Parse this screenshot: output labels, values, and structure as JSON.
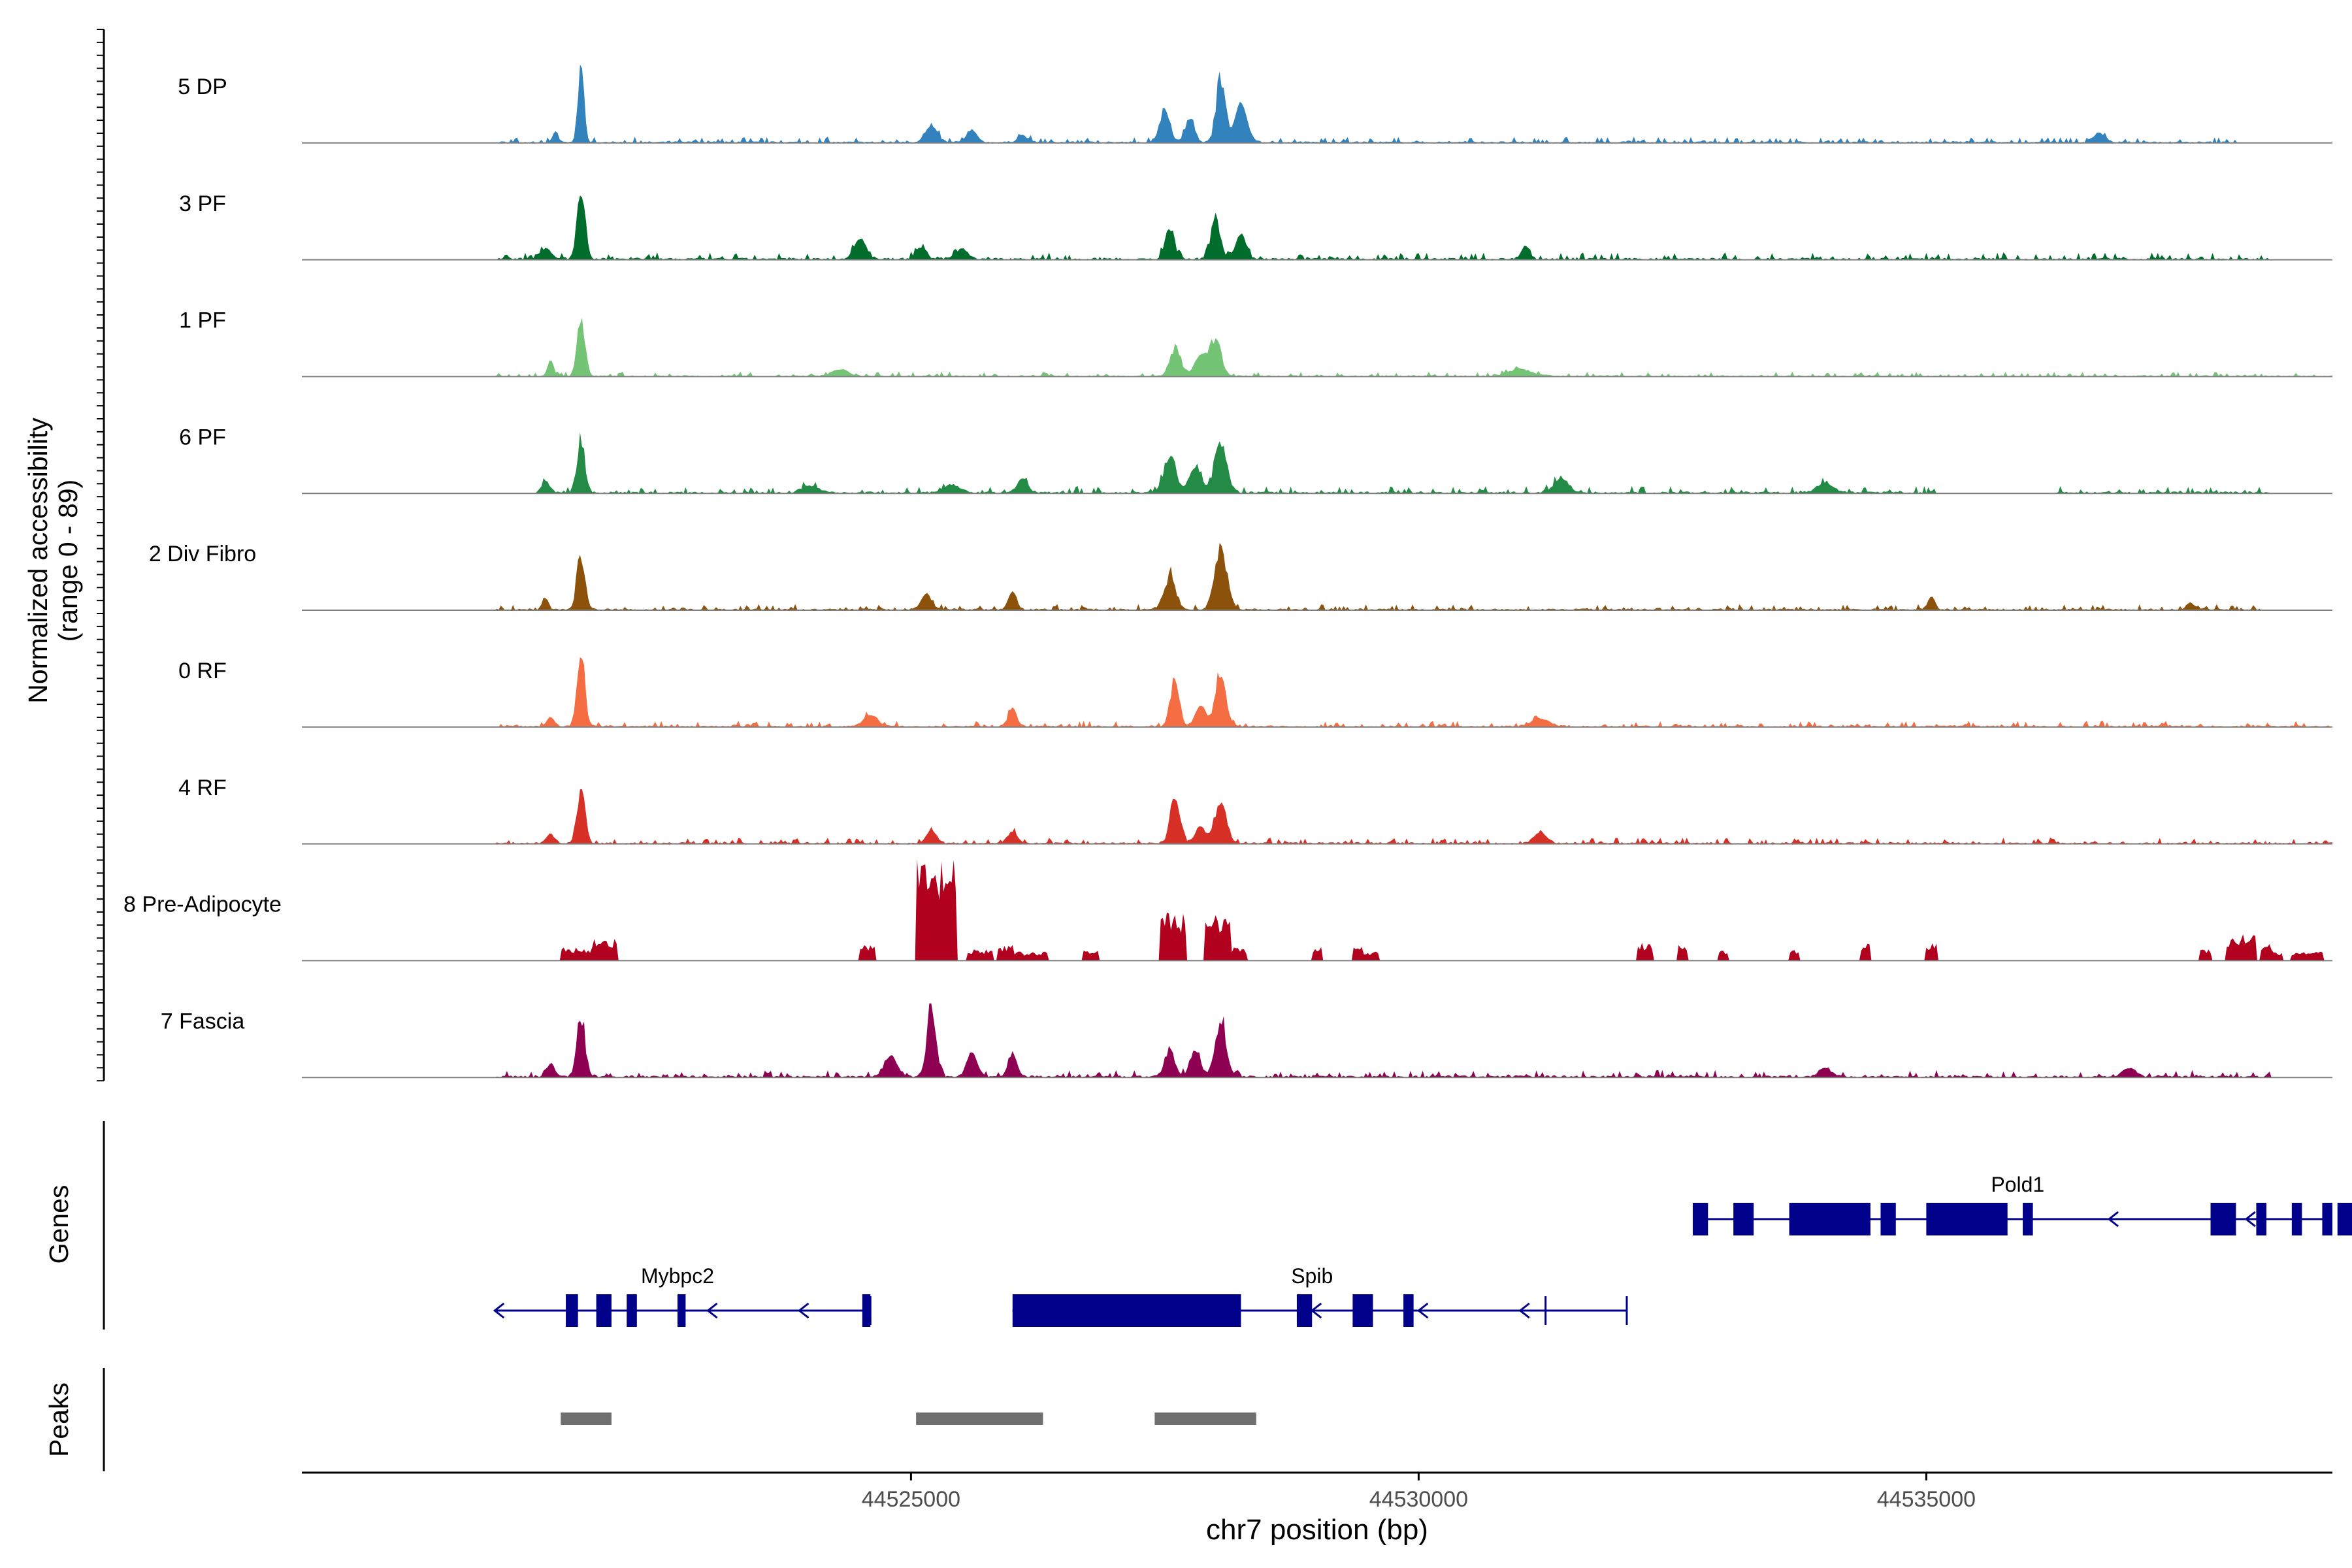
{
  "chart_data": {
    "type": "area",
    "title": "",
    "xlabel": "chr7 position (bp)",
    "ylabel": "Normalized accessibility",
    "ylabel_range": "(range 0 - 89)",
    "xlim": [
      44519000,
      44539000
    ],
    "ylim": [
      0,
      89
    ],
    "x_ticks": [
      44525000,
      44530000,
      44535000
    ],
    "x_tick_labels": [
      "44525000",
      "44530000",
      "44535000"
    ],
    "tracks_x_extent": [
      44520000,
      44539000
    ],
    "colors": {
      "axis": "#000000",
      "baseline": "#7f7f7f",
      "gene": "#00008b",
      "peak": "#6f6f6f",
      "label": "#000000",
      "tick_label": "#4d4d4d"
    },
    "series": [
      {
        "name": "5 DP",
        "color": "#3182bd",
        "peaks": [
          [
            44521750,
            70,
            30,
            1
          ],
          [
            44521500,
            10,
            25,
            0
          ],
          [
            44525200,
            14,
            60,
            0
          ],
          [
            44525600,
            10,
            50,
            0
          ],
          [
            44526100,
            6,
            50,
            0
          ],
          [
            44527500,
            32,
            50,
            1
          ],
          [
            44527750,
            22,
            45,
            1
          ],
          [
            44528050,
            60,
            45,
            1
          ],
          [
            44528250,
            35,
            60,
            0
          ],
          [
            44536700,
            8,
            60,
            0
          ]
        ],
        "noise": 2.5,
        "gaps": [
          [
            44519000,
            44520900
          ],
          [
            44538100,
            44539000
          ]
        ]
      },
      {
        "name": "3 PF",
        "color": "#006d2c",
        "peaks": [
          [
            44521750,
            58,
            40,
            1
          ],
          [
            44521400,
            9,
            60,
            0
          ],
          [
            44524500,
            18,
            60,
            0
          ],
          [
            44525100,
            10,
            50,
            0
          ],
          [
            44525500,
            9,
            60,
            0
          ],
          [
            44527550,
            30,
            45,
            1
          ],
          [
            44528000,
            35,
            50,
            1
          ],
          [
            44528250,
            22,
            50,
            0
          ],
          [
            44531050,
            12,
            40,
            0
          ]
        ],
        "noise": 3,
        "gaps": [
          [
            44519000,
            44520900
          ],
          [
            44533200,
            44533300
          ],
          [
            44538400,
            44539000
          ]
        ]
      },
      {
        "name": "1 PF",
        "color": "#74c476",
        "peaks": [
          [
            44521750,
            50,
            40,
            1
          ],
          [
            44521450,
            14,
            30,
            0
          ],
          [
            44524300,
            6,
            80,
            0
          ],
          [
            44527600,
            26,
            50,
            1
          ],
          [
            44528000,
            36,
            55,
            1
          ],
          [
            44527850,
            18,
            60,
            0
          ],
          [
            44531000,
            6,
            120,
            0
          ]
        ],
        "noise": 2,
        "gaps": [
          [
            44519000,
            44520900
          ]
        ]
      },
      {
        "name": "6 PF",
        "color": "#238b45",
        "peaks": [
          [
            44521750,
            45,
            40,
            1
          ],
          [
            44521400,
            10,
            40,
            0
          ],
          [
            44524000,
            6,
            80,
            0
          ],
          [
            44525400,
            7,
            80,
            0
          ],
          [
            44526100,
            13,
            50,
            0
          ],
          [
            44527550,
            30,
            60,
            1
          ],
          [
            44528050,
            48,
            60,
            1
          ],
          [
            44527800,
            22,
            60,
            0
          ],
          [
            44531400,
            12,
            70,
            0
          ],
          [
            44534000,
            8,
            80,
            0
          ]
        ],
        "noise": 3,
        "gaps": [
          [
            44519000,
            44521300
          ],
          [
            44535100,
            44536200
          ],
          [
            44538400,
            44539000
          ]
        ]
      },
      {
        "name": "2 Div Fibro",
        "color": "#8c510a",
        "peaks": [
          [
            44521750,
            52,
            40,
            1
          ],
          [
            44521400,
            10,
            30,
            0
          ],
          [
            44525150,
            14,
            50,
            0
          ],
          [
            44526000,
            16,
            40,
            0
          ],
          [
            44527550,
            30,
            60,
            1
          ],
          [
            44528050,
            55,
            60,
            1
          ],
          [
            44535050,
            12,
            35,
            0
          ],
          [
            44537600,
            6,
            40,
            0
          ]
        ],
        "noise": 2.5,
        "gaps": [
          [
            44519000,
            44520900
          ],
          [
            44538300,
            44539000
          ]
        ]
      },
      {
        "name": "0 RF",
        "color": "#f46d43",
        "peaks": [
          [
            44521750,
            60,
            40,
            1
          ],
          [
            44521450,
            8,
            40,
            0
          ],
          [
            44524600,
            10,
            70,
            0
          ],
          [
            44526000,
            16,
            40,
            0
          ],
          [
            44527600,
            44,
            45,
            1
          ],
          [
            44528050,
            45,
            55,
            1
          ],
          [
            44527850,
            18,
            50,
            0
          ],
          [
            44531200,
            7,
            90,
            0
          ]
        ],
        "noise": 2.5,
        "gaps": [
          [
            44519000,
            44520900
          ]
        ]
      },
      {
        "name": "4 RF",
        "color": "#d73027",
        "peaks": [
          [
            44521750,
            53,
            40,
            1
          ],
          [
            44521450,
            8,
            40,
            0
          ],
          [
            44525200,
            12,
            50,
            0
          ],
          [
            44526000,
            10,
            50,
            0
          ],
          [
            44527600,
            42,
            45,
            1
          ],
          [
            44528050,
            42,
            55,
            1
          ],
          [
            44527850,
            15,
            50,
            0
          ],
          [
            44531200,
            10,
            60,
            0
          ]
        ],
        "noise": 2.5,
        "gaps": [
          [
            44519000,
            44520900
          ]
        ]
      },
      {
        "name": "8 Pre-Adipocyte",
        "color": "#b2001f",
        "spiky": true,
        "blocks": [
          [
            44521550,
            44521850,
            12
          ],
          [
            44521850,
            44522100,
            20
          ],
          [
            44524500,
            44524650,
            14
          ],
          [
            44525050,
            44525450,
            90
          ],
          [
            44525550,
            44525800,
            10
          ],
          [
            44525850,
            44526000,
            14
          ],
          [
            44526000,
            44526350,
            8
          ],
          [
            44526700,
            44526850,
            10
          ],
          [
            44527450,
            44527700,
            44
          ],
          [
            44527900,
            44528150,
            40
          ],
          [
            44528150,
            44528300,
            12
          ],
          [
            44528950,
            44529050,
            12
          ],
          [
            44529350,
            44529450,
            12
          ],
          [
            44529450,
            44529600,
            8
          ],
          [
            44532150,
            44532300,
            16
          ],
          [
            44532550,
            44532650,
            16
          ],
          [
            44532950,
            44533050,
            10
          ],
          [
            44533650,
            44533750,
            10
          ],
          [
            44534350,
            44534450,
            16
          ],
          [
            44535000,
            44535100,
            16
          ],
          [
            44537700,
            44537800,
            10
          ],
          [
            44537950,
            44538100,
            22
          ],
          [
            44538100,
            44538250,
            24
          ],
          [
            44538300,
            44538400,
            16
          ],
          [
            44538400,
            44538500,
            8
          ],
          [
            44538600,
            44538900,
            8
          ]
        ]
      },
      {
        "name": "7 Fascia",
        "color": "#8e0152",
        "peaks": [
          [
            44521750,
            55,
            40,
            1
          ],
          [
            44521450,
            12,
            40,
            0
          ],
          [
            44524800,
            18,
            60,
            0
          ],
          [
            44525200,
            64,
            45,
            1
          ],
          [
            44525600,
            22,
            50,
            0
          ],
          [
            44526000,
            20,
            45,
            0
          ],
          [
            44527550,
            26,
            50,
            1
          ],
          [
            44528050,
            53,
            55,
            1
          ],
          [
            44527800,
            22,
            50,
            0
          ],
          [
            44534000,
            8,
            60,
            0
          ],
          [
            44537000,
            8,
            60,
            0
          ]
        ],
        "noise": 3,
        "gaps": [
          [
            44519000,
            44520900
          ],
          [
            44538400,
            44539000
          ]
        ]
      }
    ],
    "genes_panel": {
      "label": "Genes",
      "genes": [
        {
          "name": "Mybpc2",
          "row": 1,
          "strand": "-",
          "start": 44520900,
          "end": 44524600,
          "label_x": 44522700,
          "exons": [
            [
              44521600,
              44521720
            ],
            [
              44521900,
              44522050
            ],
            [
              44522200,
              44522300
            ],
            [
              44522700,
              44522780
            ],
            [
              44524520,
              44524600
            ]
          ],
          "arrows": [
            44520900,
            44523000,
            44523900
          ]
        },
        {
          "name": "Spib",
          "row": 1,
          "strand": "-",
          "start": 44526000,
          "end": 44532050,
          "label_x": 44528950,
          "exons": [
            [
              44526000,
              44528250
            ],
            [
              44528800,
              44528950
            ],
            [
              44529350,
              44529550
            ],
            [
              44529850,
              44529950
            ]
          ],
          "arrows": [
            44528950,
            44530000,
            44531000
          ],
          "marks": [
            44531250
          ]
        },
        {
          "name": "Pold1",
          "row": 0,
          "strand": "-",
          "start": 44532700,
          "end": 44538950,
          "label_x": 44535900,
          "exons": [
            [
              44532700,
              44532850
            ],
            [
              44533100,
              44533300
            ],
            [
              44533650,
              44534450
            ],
            [
              44534550,
              44534700
            ],
            [
              44535000,
              44535800
            ],
            [
              44535950,
              44536050
            ],
            [
              44537800,
              44538050
            ],
            [
              44538250,
              44538350
            ],
            [
              44538600,
              44538700
            ],
            [
              44538900,
              44539000
            ],
            [
              44539050,
              44539250
            ]
          ],
          "arrows": [
            44536800,
            44538150
          ]
        }
      ]
    },
    "peaks_panel": {
      "label": "Peaks",
      "peaks": [
        [
          44521550,
          44522050
        ],
        [
          44525050,
          44526300
        ],
        [
          44527400,
          44528400
        ]
      ]
    }
  }
}
